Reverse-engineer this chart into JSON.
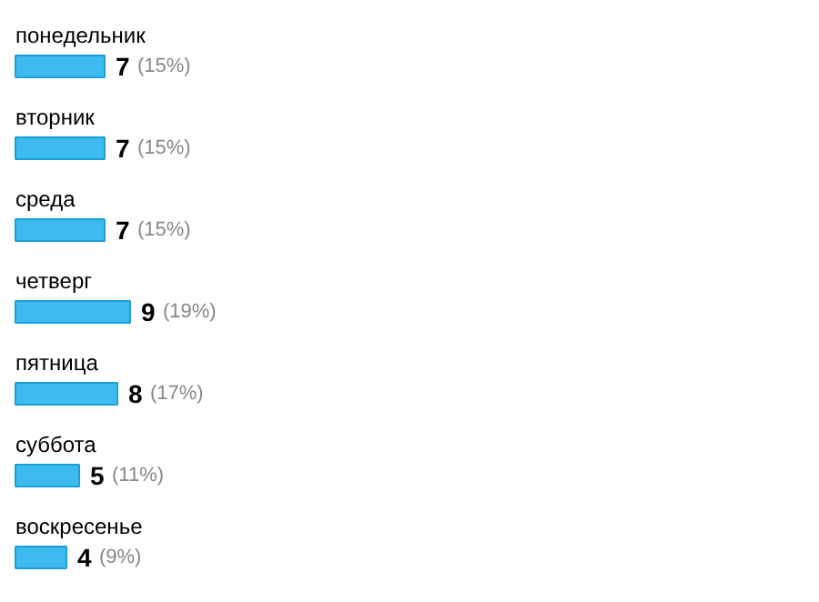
{
  "chart_data": {
    "type": "bar",
    "orientation": "horizontal",
    "categories": [
      "понедельник",
      "вторник",
      "среда",
      "четверг",
      "пятница",
      "суббота",
      "воскресенье"
    ],
    "values": [
      7,
      7,
      7,
      9,
      8,
      5,
      4
    ],
    "color": "#3dbbef",
    "value_labels": [
      "7 (15%)",
      "7 (15%)",
      "7 (15%)",
      "9 (19%)",
      "8 (17%)",
      "5 (11%)",
      "4 (9%)"
    ]
  }
}
